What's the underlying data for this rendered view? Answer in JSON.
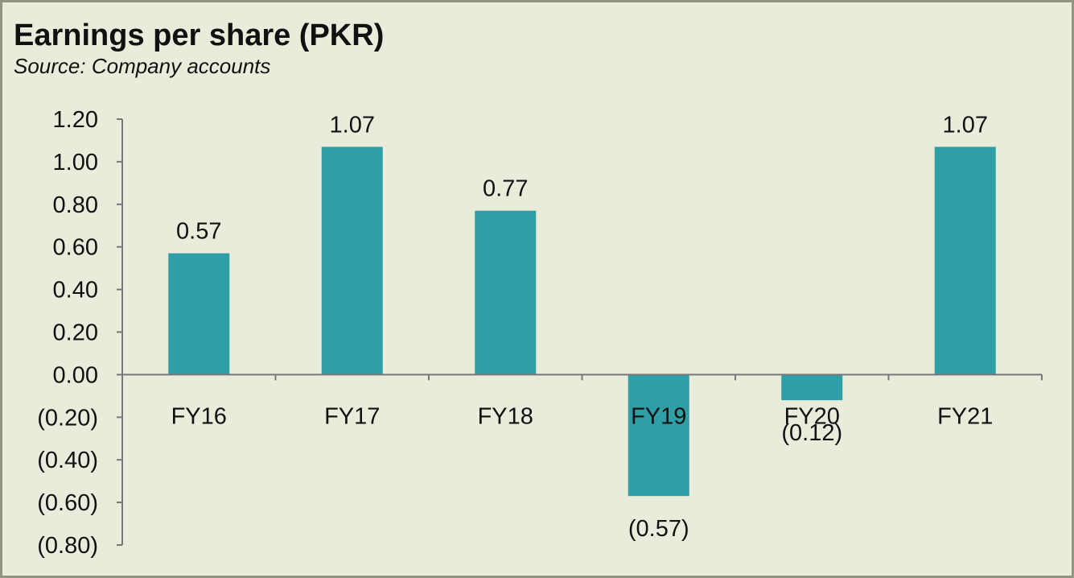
{
  "chart_data": {
    "type": "bar",
    "title": "Earnings per share (PKR)",
    "subtitle": "Source: Company accounts",
    "categories": [
      "FY16",
      "FY17",
      "FY18",
      "FY19",
      "FY20",
      "FY21"
    ],
    "values": [
      0.57,
      1.07,
      0.77,
      -0.57,
      -0.12,
      1.07
    ],
    "data_labels": [
      "0.57",
      "1.07",
      "0.77",
      "(0.57)",
      "(0.12)",
      "1.07"
    ],
    "ylim": [
      -0.8,
      1.2
    ],
    "yticks": [
      1.2,
      1.0,
      0.8,
      0.6,
      0.4,
      0.2,
      0.0,
      -0.2,
      -0.4,
      -0.6,
      -0.8
    ],
    "ytick_labels": [
      "1.20",
      "1.00",
      "0.80",
      "0.60",
      "0.40",
      "0.20",
      "0.00",
      "(0.20)",
      "(0.40)",
      "(0.60)",
      "(0.80)"
    ],
    "xlabel": "",
    "ylabel": "",
    "grid": false,
    "legend": "none",
    "bar_color": "#2e9fa6",
    "background_color": "#e9ecda"
  }
}
